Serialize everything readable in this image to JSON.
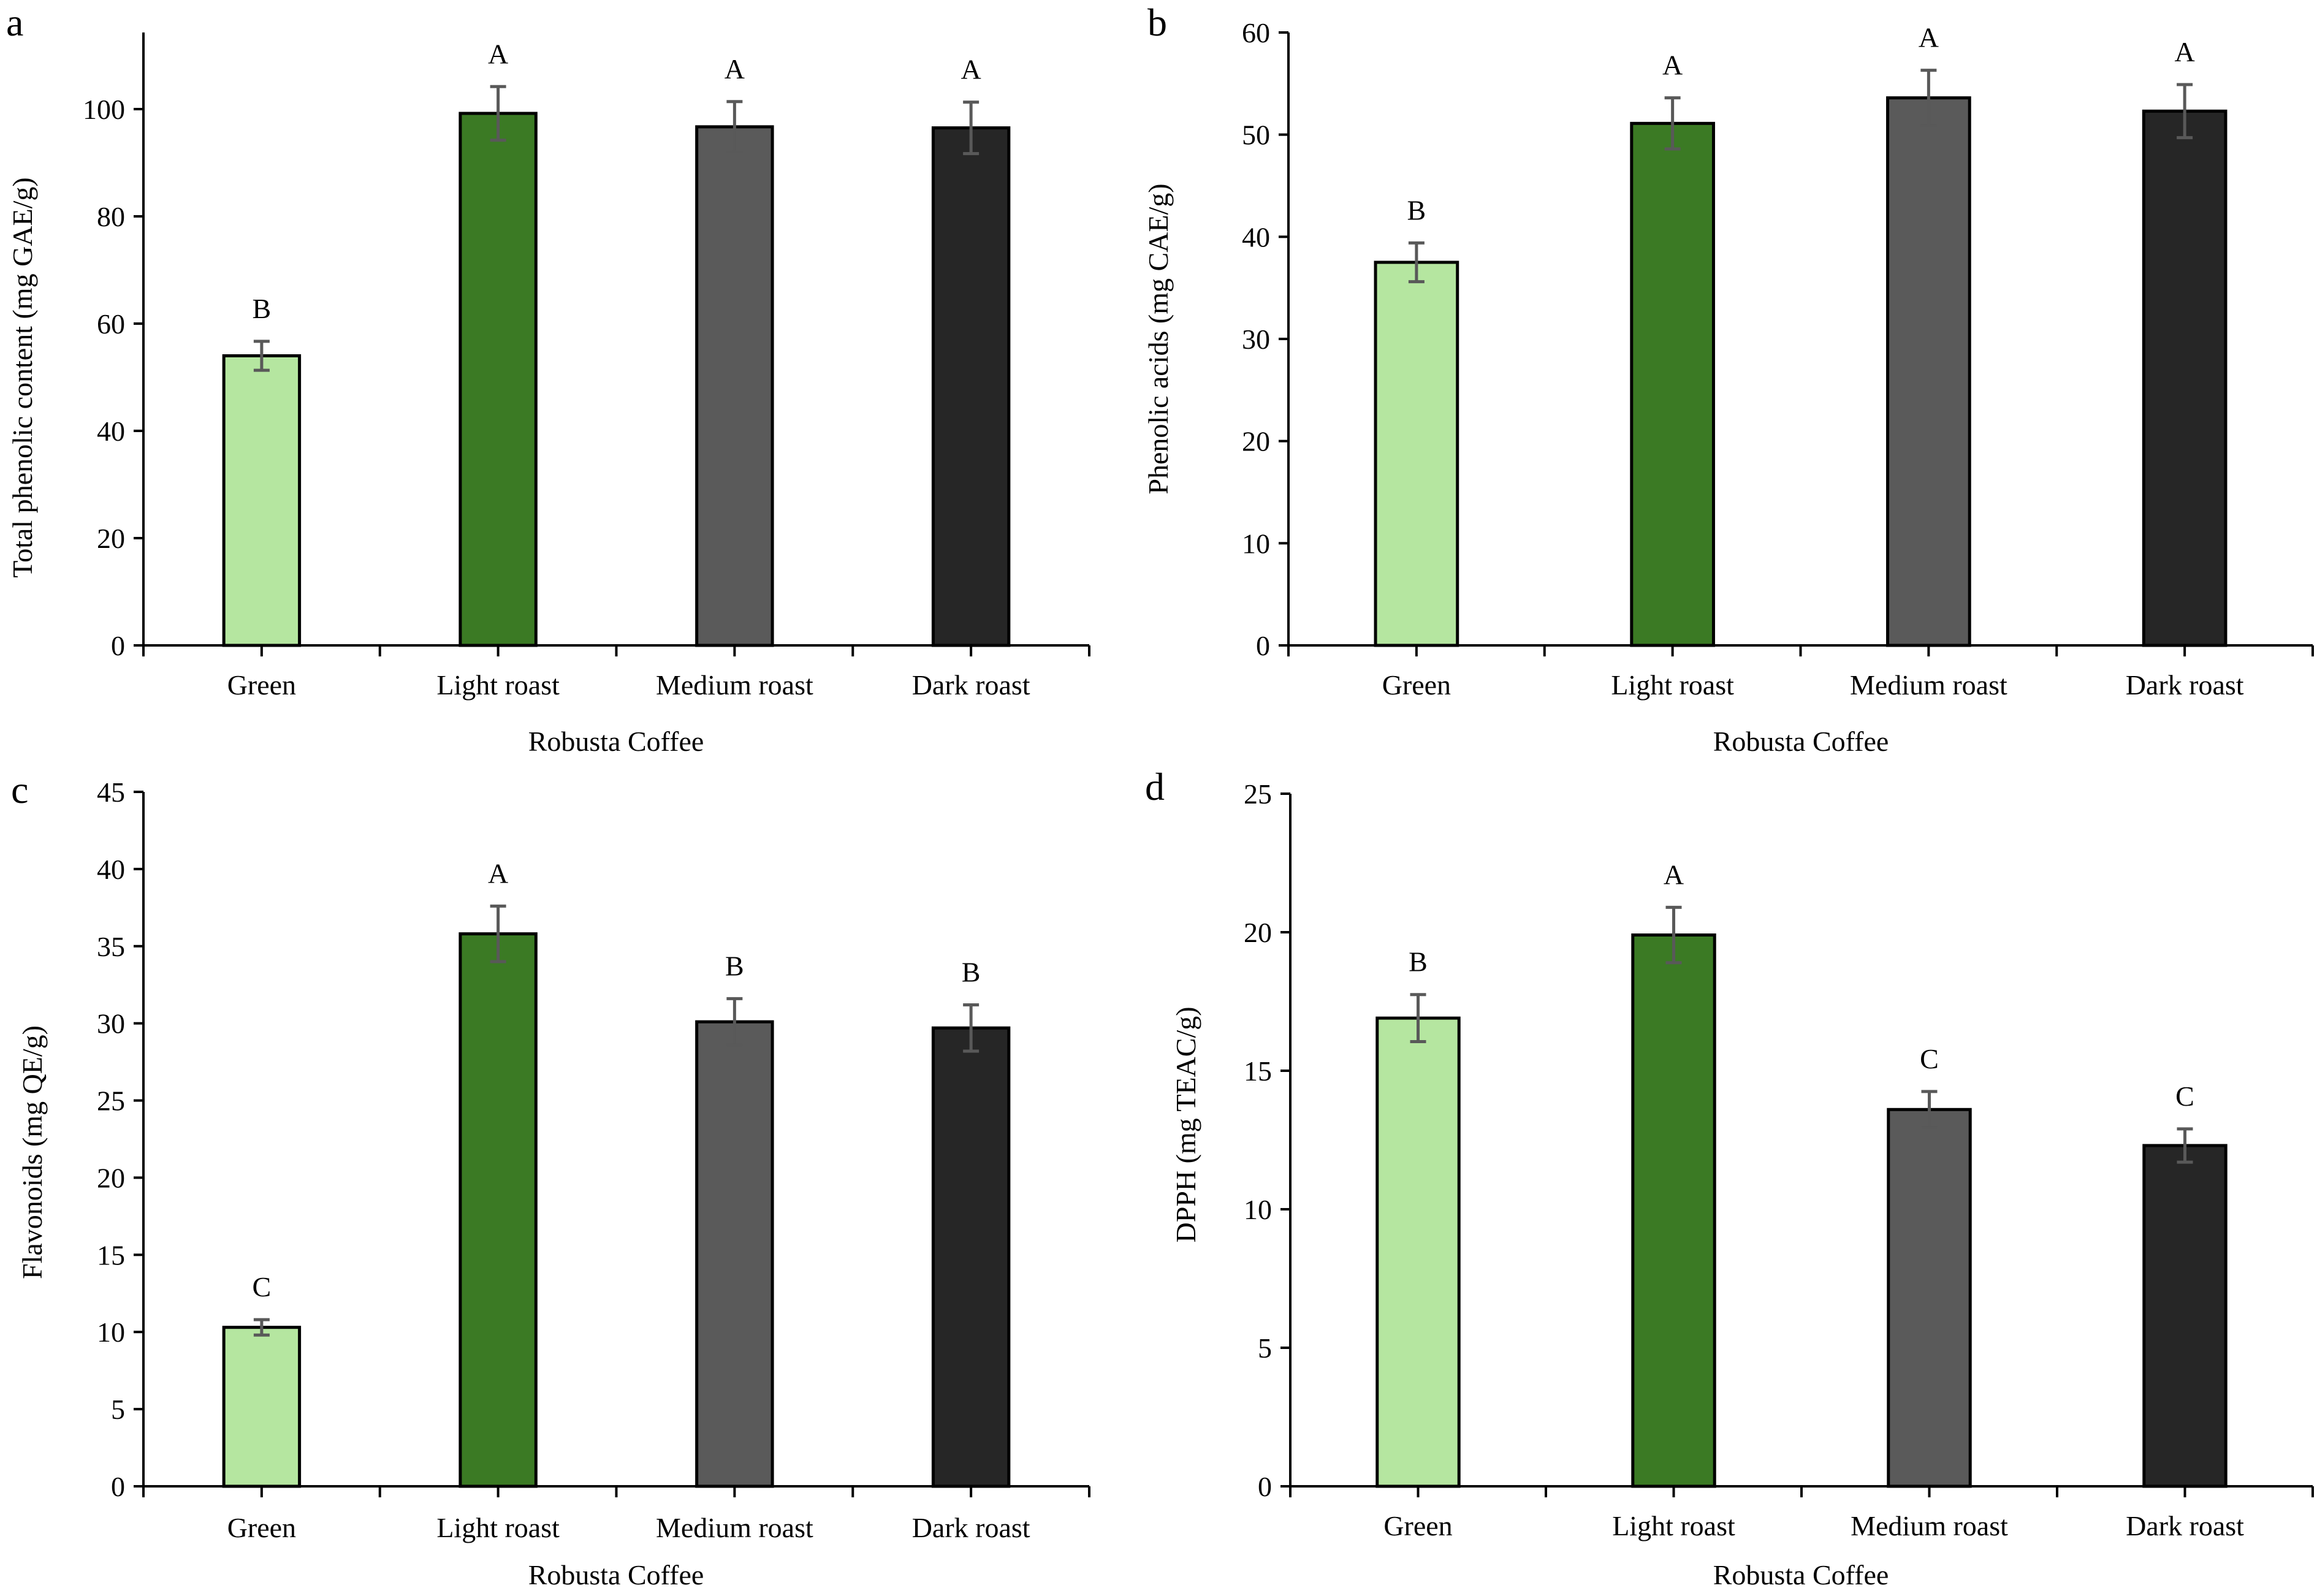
{
  "chart_data": [
    {
      "panel": "a",
      "type": "bar",
      "categories": [
        "Green",
        "Light roast",
        "Medium roast",
        "Dark roast"
      ],
      "values": [
        54.0,
        99.2,
        96.7,
        96.5
      ],
      "errors": [
        2.7,
        5.0,
        4.7,
        4.8
      ],
      "significance": [
        "B",
        "A",
        "A",
        "A"
      ],
      "colors": [
        "#b5e6a0",
        "#3b7a24",
        "#5a5a5a",
        "#262626"
      ],
      "xlabel": "Robusta Coffee",
      "ylabel": "Total phenolic content (mg GAE/g)",
      "ylim": [
        0,
        114
      ],
      "yticks": [
        0,
        20,
        40,
        60,
        80,
        100
      ]
    },
    {
      "panel": "b",
      "type": "bar",
      "categories": [
        "Green",
        "Light roast",
        "Medium roast",
        "Dark roast"
      ],
      "values": [
        37.5,
        51.1,
        53.6,
        52.3
      ],
      "errors": [
        1.9,
        2.5,
        2.7,
        2.6
      ],
      "significance": [
        "B",
        "A",
        "A",
        "A"
      ],
      "colors": [
        "#b5e6a0",
        "#3b7a24",
        "#5a5a5a",
        "#262626"
      ],
      "xlabel": "Robusta Coffee",
      "ylabel": "Phenolic acids (mg CAE/g)",
      "ylim": [
        0,
        60
      ],
      "yticks": [
        0,
        10,
        20,
        30,
        40,
        50,
        60
      ]
    },
    {
      "panel": "c",
      "type": "bar",
      "categories": [
        "Green",
        "Light roast",
        "Medium roast",
        "Dark roast"
      ],
      "values": [
        10.3,
        35.8,
        30.1,
        29.7
      ],
      "errors": [
        0.5,
        1.8,
        1.5,
        1.5
      ],
      "significance": [
        "C",
        "A",
        "B",
        "B"
      ],
      "colors": [
        "#b5e6a0",
        "#3b7a24",
        "#5a5a5a",
        "#262626"
      ],
      "xlabel": "Robusta Coffee",
      "ylabel": "Flavonoids (mg QE/g)",
      "ylim": [
        0,
        45
      ],
      "yticks": [
        0,
        5,
        10,
        15,
        20,
        25,
        30,
        35,
        40,
        45
      ]
    },
    {
      "panel": "d",
      "type": "bar",
      "categories": [
        "Green",
        "Light roast",
        "Medium roast",
        "Dark roast"
      ],
      "values": [
        16.9,
        19.9,
        13.6,
        12.3
      ],
      "errors": [
        0.85,
        1.0,
        0.65,
        0.6
      ],
      "significance": [
        "B",
        "A",
        "C",
        "C"
      ],
      "colors": [
        "#b5e6a0",
        "#3b7a24",
        "#5a5a5a",
        "#262626"
      ],
      "xlabel": "Robusta Coffee",
      "ylabel": "DPPH  (mg TEAC/g)",
      "ylim": [
        0,
        25
      ],
      "yticks": [
        0,
        5,
        10,
        15,
        20,
        25
      ]
    }
  ]
}
